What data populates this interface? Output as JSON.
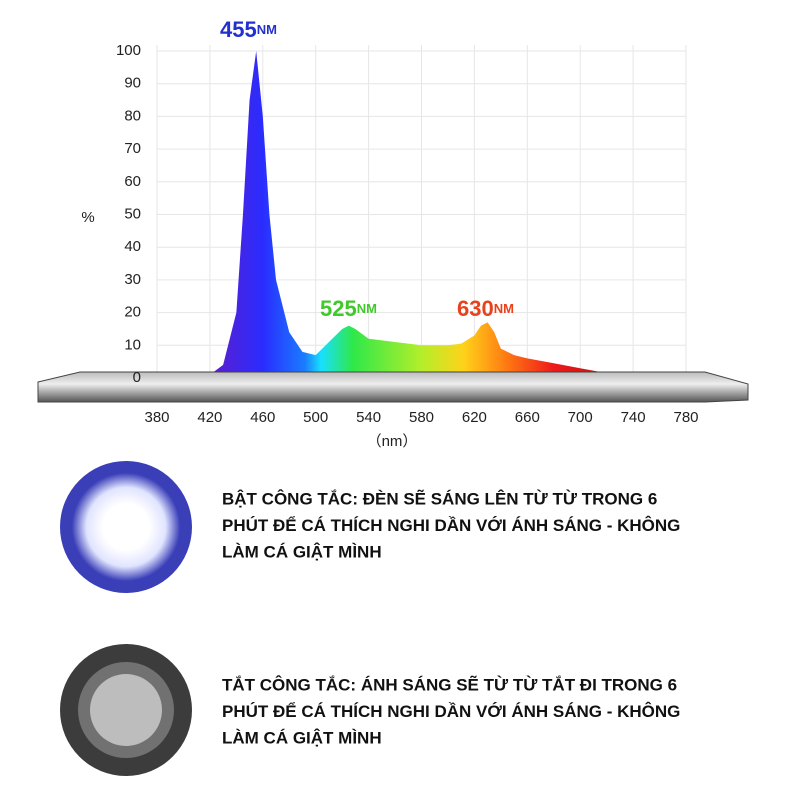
{
  "chart_data": {
    "type": "area",
    "y_label": "%",
    "x_label": "（nm）",
    "annotations": [
      {
        "text": "455",
        "unit": "NM",
        "color": "#2330d0"
      },
      {
        "text": "525",
        "unit": "NM",
        "color": "#3fc92a"
      },
      {
        "text": "630",
        "unit": "NM",
        "color": "#e8421c"
      }
    ],
    "x": [
      380,
      400,
      420,
      430,
      440,
      445,
      450,
      455,
      460,
      465,
      470,
      480,
      490,
      500,
      510,
      520,
      525,
      530,
      540,
      560,
      580,
      600,
      610,
      620,
      625,
      630,
      635,
      640,
      650,
      660,
      680,
      700,
      720,
      740,
      760,
      780
    ],
    "values": [
      0.5,
      0.5,
      1,
      4,
      20,
      50,
      85,
      100,
      80,
      50,
      30,
      14,
      8,
      7,
      11,
      15,
      16,
      15,
      12,
      11,
      10,
      10,
      10.5,
      13,
      16,
      17,
      14,
      9,
      7,
      6,
      4.5,
      3,
      1.5,
      0.5,
      0.5,
      1
    ],
    "xlim": [
      380,
      780
    ],
    "xticks": [
      380,
      420,
      460,
      500,
      540,
      580,
      620,
      660,
      700,
      740,
      780
    ],
    "ylim": [
      0,
      100
    ],
    "yticks": [
      0,
      10,
      20,
      30,
      40,
      50,
      60,
      70,
      80,
      90,
      100
    ],
    "grid": true
  },
  "notes": [
    {
      "lines": [
        "BẬT CÔNG TẮC: ĐÈN SẼ SÁNG LÊN TỪ TỪ TRONG 6",
        "PHÚT ĐỂ CÁ THÍCH NGHI DẦN VỚI ÁNH SÁNG - KHÔNG",
        "LÀM CÁ GIẬT MÌNH"
      ]
    },
    {
      "lines": [
        "TẮT CÔNG TẮC: ÁNH SÁNG SẼ TỪ TỪ TẮT ĐI TRONG 6",
        "PHÚT ĐỂ CÁ THÍCH NGHI DẦN VỚI ÁNH SÁNG - KHÔNG",
        "LÀM CÁ GIẬT MÌNH"
      ]
    }
  ]
}
